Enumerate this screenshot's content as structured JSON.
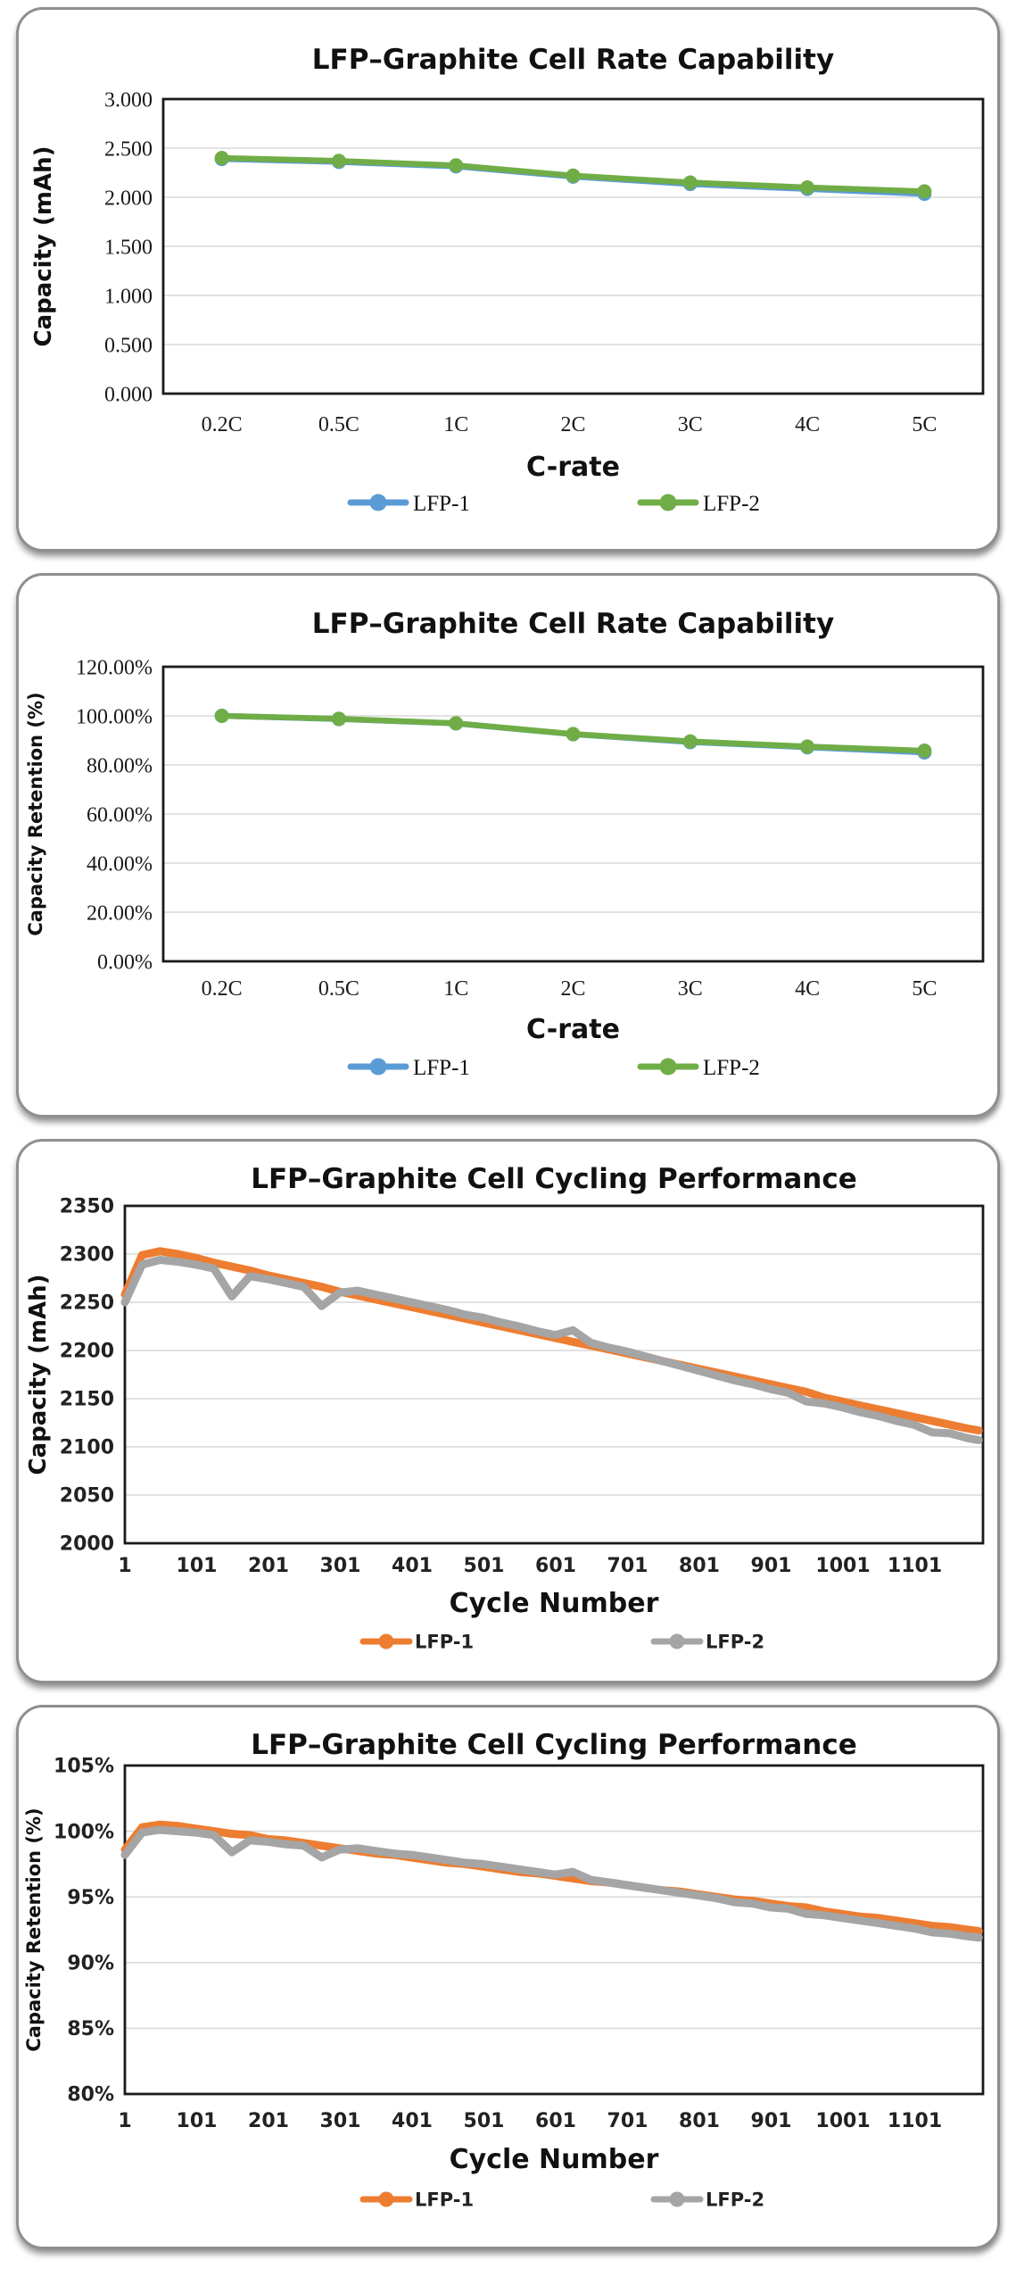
{
  "page": {
    "background": "#FFFFFF"
  },
  "panel": {
    "border_color": "#8F8F8F",
    "background": "#FFFFFF"
  },
  "colors": {
    "gridline": "#D9D9D9",
    "frame": "#1A1A1A",
    "lfp1_rate": "#5B9BD5",
    "lfp2_rate": "#70AD47",
    "lfp1_cycle": "#ED7D31",
    "lfp2_cycle": "#A5A5A5"
  },
  "chart_data": [
    {
      "id": "rate-capacity",
      "type": "line",
      "style": "rate",
      "title": "LFP–Graphite Cell Rate Capability",
      "xlabel": "C-rate",
      "ylabel": "Capacity (mAh)",
      "grid": true,
      "legend_position": "bottom",
      "categories": [
        "0.2C",
        "0.5C",
        "1C",
        "2C",
        "3C",
        "4C",
        "5C"
      ],
      "ylim": [
        0,
        3
      ],
      "y_ticks": [
        {
          "value": 0,
          "label": "0.000"
        },
        {
          "value": 0.5,
          "label": "0.500"
        },
        {
          "value": 1,
          "label": "1.000"
        },
        {
          "value": 1.5,
          "label": "1.500"
        },
        {
          "value": 2,
          "label": "2.000"
        },
        {
          "value": 2.5,
          "label": "2.500"
        },
        {
          "value": 3,
          "label": "3.000"
        }
      ],
      "series": [
        {
          "name": "LFP-1",
          "color": "#5B9BD5",
          "values": [
            2.39,
            2.36,
            2.315,
            2.21,
            2.135,
            2.085,
            2.035
          ]
        },
        {
          "name": "LFP-2",
          "color": "#70AD47",
          "values": [
            2.4,
            2.37,
            2.325,
            2.22,
            2.15,
            2.1,
            2.06
          ]
        }
      ],
      "legend": [
        "LFP-1",
        "LFP-2"
      ]
    },
    {
      "id": "rate-retention",
      "type": "line",
      "style": "rate",
      "title": "LFP–Graphite Cell Rate Capability",
      "xlabel": "C-rate",
      "ylabel": "Capacity Retention (%)",
      "grid": true,
      "legend_position": "bottom",
      "categories": [
        "0.2C",
        "0.5C",
        "1C",
        "2C",
        "3C",
        "4C",
        "5C"
      ],
      "ylim": [
        0,
        120
      ],
      "y_ticks": [
        {
          "value": 0,
          "label": "0.00%"
        },
        {
          "value": 20,
          "label": "20.00%"
        },
        {
          "value": 40,
          "label": "40.00%"
        },
        {
          "value": 60,
          "label": "60.00%"
        },
        {
          "value": 80,
          "label": "80.00%"
        },
        {
          "value": 100,
          "label": "100.00%"
        },
        {
          "value": 120,
          "label": "120.00%"
        }
      ],
      "series": [
        {
          "name": "LFP-1",
          "color": "#5B9BD5",
          "values": [
            100.0,
            98.7,
            96.9,
            92.5,
            89.3,
            87.2,
            85.1
          ]
        },
        {
          "name": "LFP-2",
          "color": "#70AD47",
          "values": [
            100.0,
            98.8,
            97.0,
            92.6,
            89.6,
            87.5,
            85.8
          ]
        }
      ],
      "legend": [
        "LFP-1",
        "LFP-2"
      ]
    },
    {
      "id": "cycling-capacity",
      "type": "line",
      "style": "cycle",
      "title": "LFP–Graphite Cell Cycling Performance",
      "xlabel": "Cycle Number",
      "ylabel": "Capacity (mAh)",
      "grid": true,
      "legend_position": "bottom",
      "xlim": [
        1,
        1196
      ],
      "x_ticks": [
        1,
        101,
        201,
        301,
        401,
        501,
        601,
        701,
        801,
        901,
        1001,
        1101
      ],
      "ylim": [
        2000,
        2350
      ],
      "y_ticks": [
        {
          "value": 2000,
          "label": "2000"
        },
        {
          "value": 2050,
          "label": "2050"
        },
        {
          "value": 2100,
          "label": "2100"
        },
        {
          "value": 2150,
          "label": "2150"
        },
        {
          "value": 2200,
          "label": "2200"
        },
        {
          "value": 2250,
          "label": "2250"
        },
        {
          "value": 2300,
          "label": "2300"
        },
        {
          "value": 2350,
          "label": "2350"
        }
      ],
      "x": [
        1,
        25,
        50,
        75,
        100,
        125,
        150,
        175,
        200,
        225,
        250,
        275,
        300,
        325,
        350,
        375,
        400,
        425,
        450,
        475,
        500,
        525,
        550,
        575,
        600,
        625,
        650,
        675,
        700,
        725,
        750,
        775,
        800,
        825,
        850,
        875,
        900,
        925,
        950,
        975,
        1000,
        1025,
        1050,
        1075,
        1100,
        1125,
        1150,
        1175,
        1190
      ],
      "series": [
        {
          "name": "LFP-1",
          "color": "#ED7D31",
          "values": [
            2258,
            2299,
            2303,
            2300,
            2296,
            2291,
            2287,
            2283,
            2278,
            2274,
            2270,
            2266,
            2261,
            2257,
            2253,
            2249,
            2245,
            2241,
            2237,
            2233,
            2229,
            2225,
            2221,
            2217,
            2213,
            2209,
            2205,
            2201,
            2197,
            2193,
            2189,
            2185,
            2181,
            2177,
            2173,
            2169,
            2165,
            2161,
            2157,
            2151,
            2147,
            2143,
            2139,
            2135,
            2131,
            2127,
            2123,
            2119,
            2117
          ]
        },
        {
          "name": "LFP-2",
          "color": "#A5A5A5",
          "values": [
            2250,
            2289,
            2294,
            2292,
            2289,
            2285,
            2256,
            2277,
            2274,
            2270,
            2266,
            2246,
            2260,
            2262,
            2258,
            2254,
            2250,
            2246,
            2242,
            2237,
            2234,
            2229,
            2225,
            2220,
            2216,
            2221,
            2208,
            2203,
            2199,
            2194,
            2189,
            2184,
            2179,
            2174,
            2169,
            2165,
            2160,
            2156,
            2147,
            2145,
            2141,
            2136,
            2132,
            2127,
            2123,
            2115,
            2114,
            2109,
            2107
          ]
        }
      ],
      "legend": [
        "LFP-1",
        "LFP-2"
      ]
    },
    {
      "id": "cycling-retention",
      "type": "line",
      "style": "cycle",
      "title": "LFP–Graphite Cell Cycling Performance",
      "xlabel": "Cycle Number",
      "ylabel": "Capacity Retention (%)",
      "grid": true,
      "legend_position": "bottom",
      "xlim": [
        1,
        1196
      ],
      "x_ticks": [
        1,
        101,
        201,
        301,
        401,
        501,
        601,
        701,
        801,
        901,
        1001,
        1101
      ],
      "ylim": [
        80,
        105
      ],
      "y_ticks": [
        {
          "value": 80,
          "label": "80%"
        },
        {
          "value": 85,
          "label": "85%"
        },
        {
          "value": 90,
          "label": "90%"
        },
        {
          "value": 95,
          "label": "95%"
        },
        {
          "value": 100,
          "label": "100%"
        },
        {
          "value": 105,
          "label": "105%"
        }
      ],
      "x": [
        1,
        25,
        50,
        75,
        100,
        125,
        150,
        175,
        200,
        225,
        250,
        275,
        300,
        325,
        350,
        375,
        400,
        425,
        450,
        475,
        500,
        525,
        550,
        575,
        600,
        625,
        650,
        675,
        700,
        725,
        750,
        775,
        800,
        825,
        850,
        875,
        900,
        925,
        950,
        975,
        1000,
        1025,
        1050,
        1075,
        1100,
        1125,
        1150,
        1175,
        1190
      ],
      "series": [
        {
          "name": "LFP-1",
          "color": "#ED7D31",
          "values": [
            98.6,
            100.3,
            100.5,
            100.4,
            100.2,
            100.0,
            99.8,
            99.7,
            99.4,
            99.3,
            99.1,
            98.9,
            98.7,
            98.5,
            98.3,
            98.2,
            98.0,
            97.8,
            97.6,
            97.5,
            97.3,
            97.1,
            96.9,
            96.8,
            96.6,
            96.4,
            96.2,
            96.1,
            95.9,
            95.7,
            95.5,
            95.4,
            95.2,
            95.0,
            94.8,
            94.7,
            94.5,
            94.3,
            94.2,
            93.9,
            93.7,
            93.5,
            93.4,
            93.2,
            93.0,
            92.8,
            92.7,
            92.5,
            92.4
          ]
        },
        {
          "name": "LFP-2",
          "color": "#A5A5A5",
          "values": [
            98.2,
            99.9,
            100.1,
            100.0,
            99.9,
            99.7,
            98.4,
            99.3,
            99.2,
            99.0,
            98.9,
            98.0,
            98.6,
            98.7,
            98.5,
            98.3,
            98.2,
            98.0,
            97.8,
            97.6,
            97.5,
            97.3,
            97.1,
            96.9,
            96.7,
            96.9,
            96.3,
            96.1,
            95.9,
            95.7,
            95.5,
            95.3,
            95.1,
            94.9,
            94.6,
            94.5,
            94.2,
            94.1,
            93.7,
            93.6,
            93.4,
            93.2,
            93.0,
            92.8,
            92.6,
            92.3,
            92.2,
            92.0,
            91.9
          ]
        }
      ],
      "legend": [
        "LFP-1",
        "LFP-2"
      ]
    }
  ]
}
